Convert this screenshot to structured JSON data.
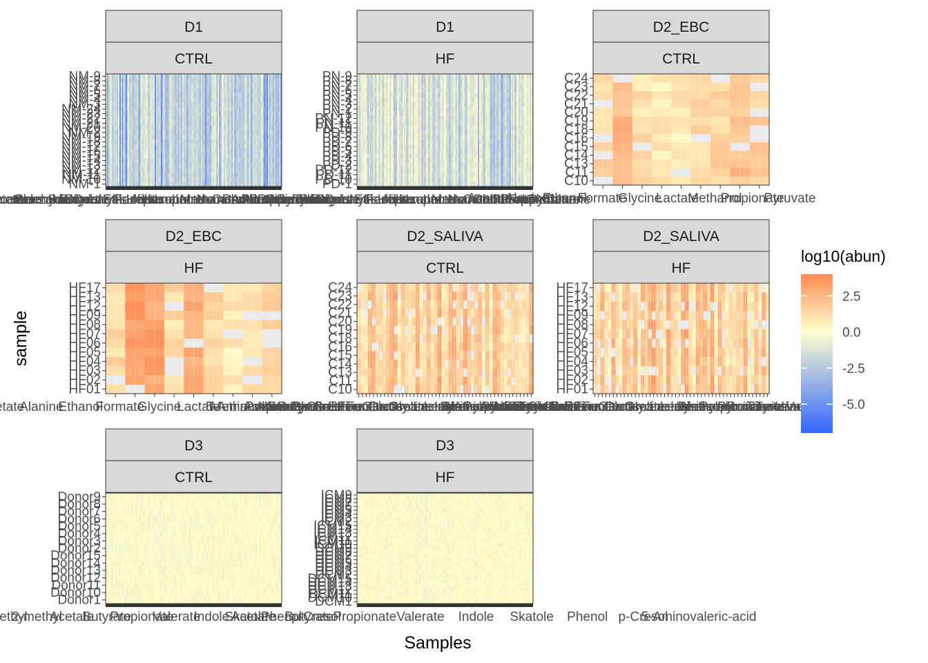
{
  "chart_data": {
    "type": "heatmap",
    "xlabel": "Samples",
    "ylabel": "sample",
    "legend": {
      "title": "log10(abun)",
      "placement": "right",
      "breaks": [
        2.5,
        0.0,
        -2.5,
        -5.0
      ],
      "break_labels": [
        "2.5",
        "0.0",
        "-2.5",
        "-5.0"
      ],
      "range": [
        -7,
        4
      ],
      "colors": {
        "low": "#3366ff",
        "mid": "#ffffcc",
        "high": "#ff8a55"
      },
      "missing_color": "#ebebeb"
    },
    "panels": [
      {
        "strip_top": "D1",
        "strip_bottom": "CTRL",
        "ncols": 140,
        "seed": 11,
        "mode": "blue_lines",
        "missing_rate": 0,
        "y_labels": [
          "NM-9",
          "NM-8",
          "NM-7",
          "NM-6",
          "NM-5",
          "NM-4",
          "NM-3",
          "NM-24",
          "NM-23",
          "NM-22",
          "NM-21",
          "NM-20",
          "NM-2",
          "NM-19",
          "NM-18",
          "NM-17",
          "NM-16",
          "NM-15",
          "NM-14",
          "NM-13",
          "NM-12",
          "NM-11",
          "NM-10",
          "NM-1"
        ],
        "x_label_text": [
          "Acetate",
          "Acetone",
          "Acetaldehyde",
          "Ammonia",
          "Benzaldehyde",
          "Butanol",
          "Butyrate",
          "Decanal",
          "Dimethyl-sulfide",
          "Ethanol",
          "Formate",
          "Heptanal",
          "Hexanal",
          "Isoprene",
          "Lactate",
          "Methanol",
          "Nonanal",
          "Octanal",
          "Pentanal",
          "Phenol",
          "Propanol",
          "Propionate",
          "Pyruvate",
          "Toluene"
        ],
        "x_dense": true,
        "y_crowded": false
      },
      {
        "strip_top": "D1",
        "strip_bottom": "HF",
        "ncols": 150,
        "seed": 23,
        "mode": "blue_lines_yellow",
        "missing_rate": 0,
        "y_labels": [
          "PN-9",
          "PN-8",
          "PN-7",
          "PN-6",
          "PN-5",
          "PN-4",
          "PN-3",
          "PN-2",
          "PN-1",
          "PN-12",
          "PN-11",
          "PN-10",
          "PD-9",
          "PD-8",
          "PD-7",
          "PD-6",
          "PD-5",
          "PD-4",
          "PD-3",
          "PD-2",
          "PD-12",
          "PD-11",
          "PD-10",
          "PD-1"
        ],
        "x_label_text": [
          "Acetate",
          "Acetone",
          "Acetaldehyde",
          "Ammonia",
          "Benzaldehyde",
          "Butanol",
          "Butyrate",
          "Decanal",
          "Dimethyl-sulfide",
          "Ethanol",
          "Formate",
          "Heptanal",
          "Hexanal",
          "Isoprene",
          "Lactate",
          "Methanol",
          "Nonanal",
          "Octanal",
          "Pentanal",
          "Phenol",
          "Propanol",
          "Propionate",
          "Pyruvate",
          "Toluene"
        ],
        "x_dense": true,
        "y_crowded": true
      },
      {
        "strip_top": "D2_EBC",
        "strip_bottom": "CTRL",
        "ncols": 9,
        "seed": 37,
        "mode": "orange",
        "missing_rate": 0.12,
        "y_labels": [
          "C24",
          "C23",
          "C22",
          "C21",
          "C20",
          "C19",
          "C18",
          "C16",
          "C15",
          "C14",
          "C13",
          "C11",
          "C10"
        ],
        "x_label_text": [
          "Acetate",
          "Alanine",
          "Ethanol",
          "Formate",
          "Glycine",
          "Lactate",
          "Methanol",
          "Propionate",
          "Pyruvate"
        ],
        "x_dense": false,
        "y_crowded": false
      },
      {
        "strip_top": "D2_EBC",
        "strip_bottom": "HF",
        "ncols": 9,
        "seed": 41,
        "mode": "orange",
        "missing_rate": 0.15,
        "y_labels": [
          "HF17",
          "HF13",
          "HF12",
          "HF09",
          "HF08",
          "HF07",
          "HF06",
          "HF05",
          "HF04",
          "HF03",
          "HF02",
          "HF01"
        ],
        "x_label_text": [
          "Acetate",
          "Alanine",
          "Ethanol",
          "Formate",
          "Glycine",
          "Lactate",
          "Methanol",
          "Propionate",
          "Pyruvate"
        ],
        "x_dense": false,
        "y_crowded": false
      },
      {
        "strip_top": "D2_SALIVA",
        "strip_bottom": "CTRL",
        "ncols": 48,
        "seed": 53,
        "mode": "orange",
        "missing_rate": 0.1,
        "y_labels": [
          "C24",
          "C23",
          "C22",
          "C21",
          "C20",
          "C19",
          "C18",
          "C16",
          "C15",
          "C14",
          "C13",
          "C11",
          "C10"
        ],
        "x_label_text": [
          "5-Aminovalerate",
          "Acetate",
          "Alanine",
          "Betaine",
          "Butyrate",
          "Choline",
          "Citrate",
          "Creatine",
          "Ethanol",
          "Formate",
          "Fumarate",
          "Glucose",
          "Glutamate",
          "Glycine",
          "Isoleucine",
          "Lactate",
          "Leucine",
          "Lysine",
          "Methanol",
          "Phenylalanine",
          "Propionate",
          "Pyruvate",
          "Succinate",
          "Taurine",
          "Tyrosine",
          "Uracil",
          "Valine"
        ],
        "x_dense": false,
        "y_crowded": false
      },
      {
        "strip_top": "D2_SALIVA",
        "strip_bottom": "HF",
        "ncols": 48,
        "seed": 67,
        "mode": "orange",
        "missing_rate": 0.1,
        "y_labels": [
          "HF17",
          "HF13",
          "HF12",
          "HF09",
          "HF08",
          "HF07",
          "HF06",
          "HF05",
          "HF04",
          "HF03",
          "HF02",
          "HF01"
        ],
        "x_label_text": [
          "5-Aminovalerate",
          "Acetate",
          "Alanine",
          "Betaine",
          "Butyrate",
          "Choline",
          "Citrate",
          "Creatine",
          "Ethanol",
          "Formate",
          "Fumarate",
          "Glucose",
          "Glutamate",
          "Glycine",
          "Isoleucine",
          "Lactate",
          "Leucine",
          "Lysine",
          "Methanol",
          "Phenylalanine",
          "Propionate",
          "Pyruvate",
          "Succinate",
          "Taurine",
          "Tyrosine",
          "Uracil",
          "Valine"
        ],
        "x_dense": false,
        "y_crowded": false
      },
      {
        "strip_top": "D3",
        "strip_bottom": "CTRL",
        "ncols": 120,
        "seed": 79,
        "mode": "pale",
        "missing_rate": 0,
        "y_labels": [
          "Donor9",
          "Donor8",
          "Donor7",
          "Donor6",
          "Donor5",
          "Donor4",
          "Donor3",
          "Donor2",
          "Donor15",
          "Donor14",
          "Donor13",
          "Donor12",
          "Donor11",
          "Donor10",
          "Donor1"
        ],
        "x_label_text": [
          "3-methyl",
          "2-methyl",
          "Acetate",
          "Butyrate",
          "Propionate",
          "Valerate",
          "Indole",
          "Skatole",
          "Phenol",
          "p-Cresol"
        ],
        "x_dense": true,
        "y_crowded": false
      },
      {
        "strip_top": "D3",
        "strip_bottom": "HF",
        "ncols": 120,
        "seed": 83,
        "mode": "pale",
        "missing_rate": 0,
        "y_labels": [
          "ICM9",
          "ICM8",
          "ICM7",
          "ICM6",
          "ICM5",
          "ICM4",
          "ICM3",
          "ICM2",
          "ICM15",
          "ICM14",
          "ICM13",
          "ICM12",
          "ICM11",
          "ICM10",
          "DCM9",
          "DCM8",
          "DCM7",
          "DCM6",
          "DCM5",
          "DCM4",
          "DCM3",
          "DCM2",
          "DCM15",
          "DCM14",
          "DCM13",
          "DCM12",
          "DCM11",
          "DCM10",
          "DCM1"
        ],
        "x_label_text": [
          "Acetate",
          "Butyrate",
          "Propionate",
          "Valerate",
          "Indole",
          "Skatole",
          "Phenol",
          "p-Cresol",
          "5-Aminovaleric-acid"
        ],
        "x_dense": true,
        "y_crowded": true
      }
    ]
  }
}
